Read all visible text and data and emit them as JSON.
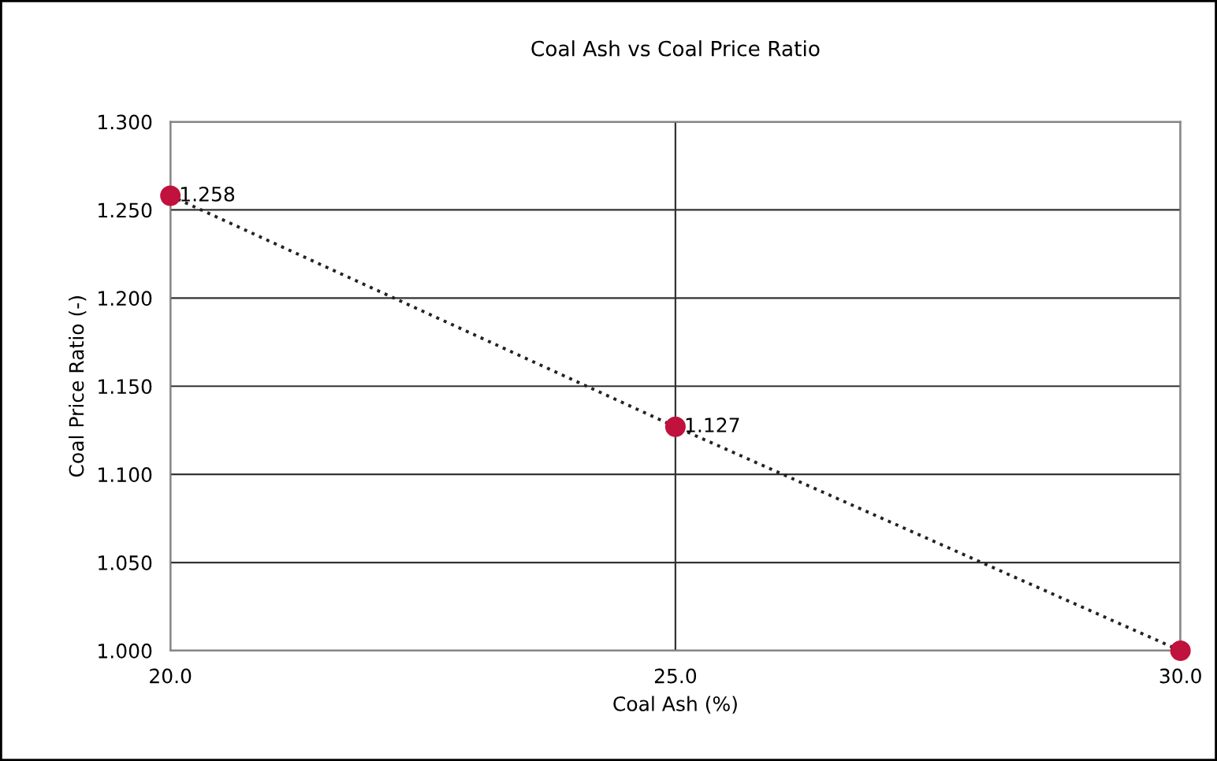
{
  "chart_data": {
    "type": "line",
    "title": "Coal Ash vs Coal Price Ratio",
    "xlabel": "Coal Ash (%)",
    "ylabel": "Coal Price Ratio (-)",
    "x": [
      20.0,
      25.0,
      30.0
    ],
    "series": [
      {
        "color": "#c0123c",
        "values": [
          1.258,
          1.127,
          1.0
        ],
        "value_labels": [
          "1.258",
          "1.127",
          null
        ]
      }
    ],
    "xlim": [
      20.0,
      30.0
    ],
    "xticks": [
      {
        "value": 20,
        "label": "20.0"
      },
      {
        "value": 25,
        "label": "25.0"
      },
      {
        "value": 30,
        "label": "30.0"
      }
    ],
    "ylim": [
      1.0,
      1.3
    ],
    "yticks": [
      {
        "value": 1.0,
        "label": "1.000"
      },
      {
        "value": 1.05,
        "label": "1.050"
      },
      {
        "value": 1.1,
        "label": "1.100"
      },
      {
        "value": 1.15,
        "label": "1.150"
      },
      {
        "value": 1.2,
        "label": "1.200"
      },
      {
        "value": 1.25,
        "label": "1.250"
      },
      {
        "value": 1.3,
        "label": "1.300"
      }
    ],
    "grid": true,
    "legend": false,
    "marker": "circle",
    "line_style": "dotted"
  }
}
